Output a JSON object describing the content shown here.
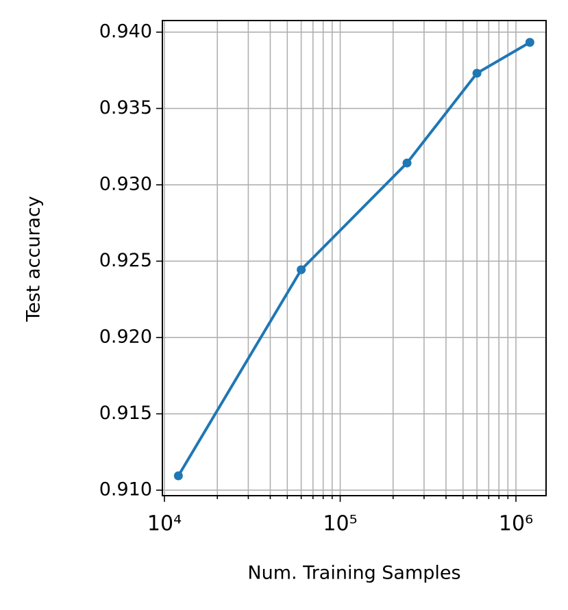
{
  "chart_data": {
    "type": "line",
    "xlabel": "Num. Training Samples",
    "ylabel": "Test accuracy",
    "x": [
      12000,
      60000,
      240000,
      600000,
      1200000
    ],
    "series": [
      {
        "color": "#1f77b4",
        "values": [
          0.91094,
          0.92444,
          0.93143,
          0.93731,
          0.93933
        ]
      }
    ],
    "xscale": "log",
    "xlim": [
      9734,
      1484000
    ],
    "xticks": [
      {
        "value": 10000,
        "label": "10⁴"
      },
      {
        "value": 100000,
        "label": "10⁵"
      },
      {
        "value": 1000000,
        "label": "10⁶"
      }
    ],
    "xminorticks": [
      20000,
      30000,
      40000,
      50000,
      60000,
      70000,
      80000,
      90000,
      200000,
      300000,
      400000,
      500000,
      600000,
      700000,
      800000,
      900000
    ],
    "ylim": [
      0.90964,
      0.94076
    ],
    "yticks": [
      {
        "value": 0.91,
        "label": "0.910"
      },
      0.915,
      {
        "value": 0.92,
        "label": "0.920"
      },
      0.925,
      {
        "value": 0.93,
        "label": "0.930"
      },
      0.935,
      {
        "value": 0.94,
        "label": "0.940"
      }
    ],
    "grid": true
  }
}
